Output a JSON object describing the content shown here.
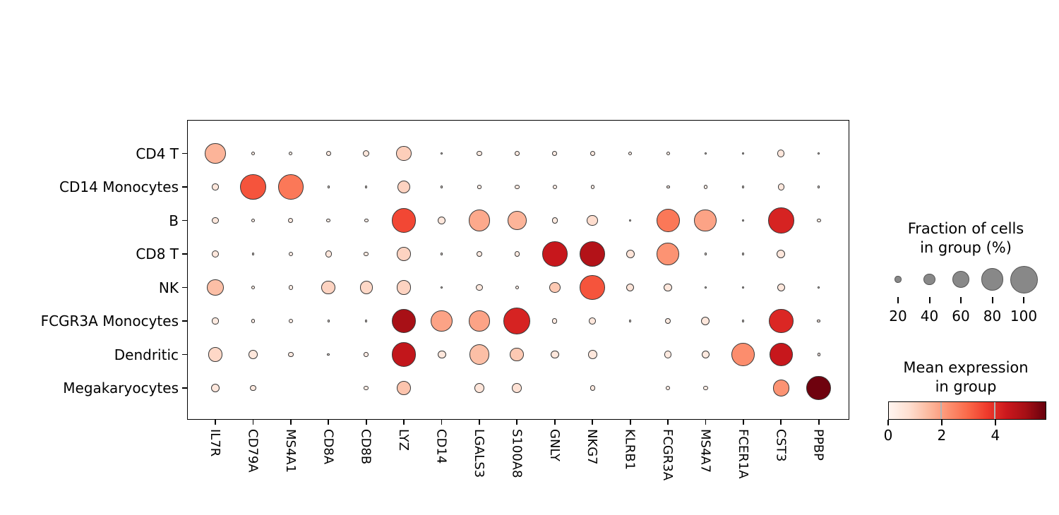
{
  "chart_data": {
    "type": "dotplot",
    "genes": [
      "IL7R",
      "CD79A",
      "MS4A1",
      "CD8A",
      "CD8B",
      "LYZ",
      "CD14",
      "LGALS3",
      "S100A8",
      "GNLY",
      "NKG7",
      "KLRB1",
      "FCGR3A",
      "MS4A7",
      "FCER1A",
      "CST3",
      "PPBP"
    ],
    "cell_types": [
      "CD4 T",
      "CD14 Monocytes",
      "B",
      "CD8 T",
      "NK",
      "FCGR3A Monocytes",
      "Dendritic",
      "Megakaryocytes"
    ],
    "fraction_pct": [
      [
        74,
        8,
        8,
        14,
        19,
        53,
        4,
        14,
        13,
        13,
        14,
        8,
        8,
        4,
        3,
        22,
        3
      ],
      [
        20,
        94,
        91,
        3,
        3,
        45,
        3,
        9,
        12,
        10,
        9,
        0,
        8,
        10,
        3,
        20,
        3
      ],
      [
        20,
        10,
        14,
        10,
        10,
        88,
        24,
        76,
        67,
        17,
        37,
        3,
        84,
        81,
        3,
        93,
        10
      ],
      [
        24,
        3,
        12,
        19,
        12,
        48,
        3,
        16,
        14,
        91,
        93,
        27,
        80,
        3,
        3,
        27,
        0
      ],
      [
        58,
        8,
        12,
        48,
        44,
        50,
        3,
        20,
        10,
        37,
        91,
        25,
        27,
        4,
        3,
        25,
        4
      ],
      [
        19,
        10,
        12,
        4,
        4,
        87,
        76,
        74,
        97,
        14,
        21,
        3,
        16,
        27,
        3,
        89,
        8
      ],
      [
        50,
        29,
        16,
        5,
        12,
        87,
        27,
        72,
        48,
        27,
        29,
        0,
        24,
        26,
        84,
        85,
        6
      ],
      [
        27,
        17,
        0,
        0,
        13,
        50,
        0,
        33,
        32,
        0,
        14,
        0,
        12,
        12,
        0,
        58,
        89
      ]
    ],
    "mean_expression": [
      [
        1.6,
        0.3,
        0.3,
        0.4,
        0.5,
        1.1,
        0.3,
        0.4,
        0.4,
        0.3,
        0.4,
        0.3,
        0.3,
        0.2,
        0.2,
        0.5,
        0.2
      ],
      [
        0.5,
        3.3,
        2.7,
        0.2,
        0.2,
        1.0,
        0.2,
        0.3,
        0.4,
        0.3,
        0.3,
        0.0,
        0.3,
        0.3,
        0.2,
        0.5,
        0.2
      ],
      [
        0.5,
        0.3,
        0.4,
        0.3,
        0.3,
        3.5,
        0.5,
        1.8,
        1.6,
        0.4,
        0.8,
        0.2,
        2.7,
        1.9,
        0.2,
        4.2,
        0.3
      ],
      [
        0.5,
        0.2,
        0.3,
        0.5,
        0.4,
        1.0,
        0.2,
        0.4,
        0.4,
        4.5,
        4.9,
        0.6,
        2.2,
        0.2,
        0.2,
        0.5,
        0.0
      ],
      [
        1.4,
        0.3,
        0.3,
        1.0,
        0.9,
        1.0,
        0.2,
        0.5,
        0.3,
        1.2,
        3.3,
        0.6,
        0.5,
        0.2,
        0.2,
        0.5,
        0.2
      ],
      [
        0.4,
        0.3,
        0.3,
        0.2,
        0.2,
        5.1,
        1.9,
        1.9,
        4.2,
        0.4,
        0.5,
        0.2,
        0.4,
        0.5,
        0.2,
        4.1,
        0.3
      ],
      [
        0.9,
        0.5,
        0.4,
        0.2,
        0.3,
        4.6,
        0.5,
        1.4,
        1.2,
        0.5,
        0.5,
        0.0,
        0.4,
        0.4,
        2.3,
        4.5,
        0.2
      ],
      [
        0.5,
        0.4,
        0.0,
        0.0,
        0.3,
        1.3,
        0.0,
        0.6,
        0.7,
        0.0,
        0.4,
        0.0,
        0.3,
        0.3,
        0.0,
        2.2,
        5.8
      ]
    ],
    "size_legend": {
      "title": [
        "Fraction of cells",
        "in group (%)"
      ],
      "values": [
        20,
        40,
        60,
        80,
        100
      ],
      "tick_labels": [
        "20",
        "40",
        "60",
        "80",
        "100"
      ]
    },
    "color_legend": {
      "title": [
        "Mean expression",
        "in group"
      ],
      "tick_values": [
        0,
        2,
        4
      ],
      "tick_labels": [
        "0",
        "2",
        "4"
      ],
      "vmin": 0,
      "vmax": 5.9,
      "colormap": "Reds",
      "colormap_stops": [
        "#fff5f0",
        "#fee0d2",
        "#fcbba1",
        "#fc9272",
        "#fb6a4a",
        "#ef3b2c",
        "#cb181d",
        "#a50f15",
        "#67000d"
      ]
    },
    "style": {
      "dot_edge": "#373737",
      "legend_dot_fill": "#888888",
      "legend_dot_edge": "#555555",
      "frame_color": "#000000",
      "background": "#ffffff"
    }
  }
}
